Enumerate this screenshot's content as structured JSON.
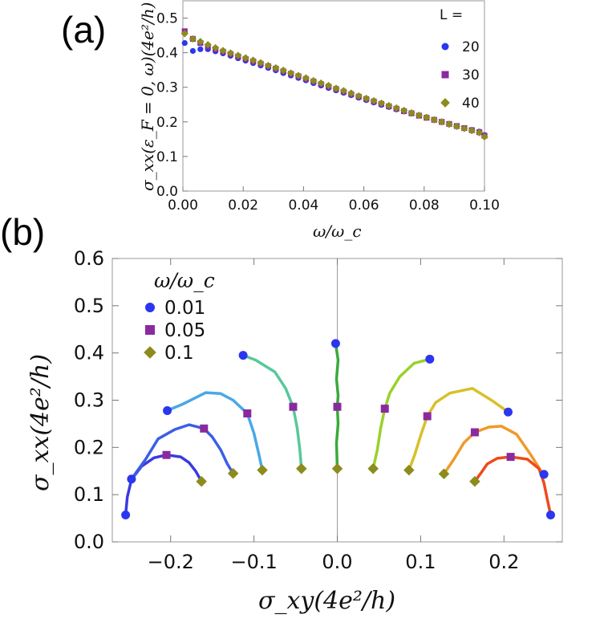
{
  "panel_a": {
    "label": "(a)"
  },
  "panel_b": {
    "label": "(b)"
  },
  "chart_data": [
    {
      "type": "scatter",
      "id": "a",
      "title": "",
      "xlabel": "ω/ω_c",
      "ylabel": "σ_xx(ε_F = 0, ω)(4e²/h)",
      "xlim": [
        0,
        0.1
      ],
      "ylim": [
        0,
        0.55
      ],
      "xticks": [
        "0.00",
        "0.02",
        "0.04",
        "0.06",
        "0.08",
        "0.10"
      ],
      "yticks": [
        "0.0",
        "0.1",
        "0.2",
        "0.3",
        "0.4",
        "0.5"
      ],
      "legend_title": "L =",
      "legend_position": "top-right",
      "x": [
        0.0006,
        0.0033,
        0.0058,
        0.0083,
        0.0108,
        0.0133,
        0.0158,
        0.0183,
        0.0208,
        0.0233,
        0.0258,
        0.0283,
        0.0308,
        0.0333,
        0.0358,
        0.0383,
        0.0408,
        0.0433,
        0.0458,
        0.0483,
        0.0508,
        0.0533,
        0.0558,
        0.0583,
        0.0608,
        0.0633,
        0.0658,
        0.0683,
        0.0708,
        0.0733,
        0.0758,
        0.0783,
        0.0808,
        0.0833,
        0.0858,
        0.0883,
        0.0908,
        0.0933,
        0.0958,
        0.0983,
        0.1
      ],
      "series": [
        {
          "name": "20",
          "color": "#2a36f0",
          "marker": "circle",
          "values": [
            0.428,
            0.405,
            0.41,
            0.41,
            0.404,
            0.398,
            0.391,
            0.384,
            0.377,
            0.37,
            0.363,
            0.356,
            0.349,
            0.341,
            0.334,
            0.327,
            0.32,
            0.312,
            0.305,
            0.298,
            0.291,
            0.284,
            0.277,
            0.27,
            0.263,
            0.256,
            0.249,
            0.243,
            0.236,
            0.23,
            0.224,
            0.218,
            0.212,
            0.206,
            0.2,
            0.194,
            0.188,
            0.182,
            0.177,
            0.172,
            0.162
          ]
        },
        {
          "name": "30",
          "color": "#8a2a9e",
          "marker": "square",
          "values": [
            0.462,
            0.44,
            0.428,
            0.418,
            0.41,
            0.403,
            0.396,
            0.389,
            0.382,
            0.375,
            0.368,
            0.361,
            0.354,
            0.346,
            0.339,
            0.332,
            0.324,
            0.317,
            0.309,
            0.302,
            0.295,
            0.287,
            0.28,
            0.273,
            0.266,
            0.259,
            0.252,
            0.245,
            0.238,
            0.231,
            0.225,
            0.218,
            0.212,
            0.206,
            0.2,
            0.194,
            0.188,
            0.182,
            0.176,
            0.17,
            0.16
          ]
        },
        {
          "name": "40",
          "color": "#8c8c1e",
          "marker": "diamond",
          "values": [
            0.455,
            0.44,
            0.432,
            0.423,
            0.414,
            0.406,
            0.399,
            0.392,
            0.385,
            0.378,
            0.371,
            0.363,
            0.356,
            0.349,
            0.341,
            0.334,
            0.327,
            0.319,
            0.312,
            0.305,
            0.297,
            0.29,
            0.283,
            0.275,
            0.268,
            0.261,
            0.254,
            0.247,
            0.24,
            0.233,
            0.226,
            0.219,
            0.213,
            0.206,
            0.2,
            0.193,
            0.187,
            0.181,
            0.175,
            0.169,
            0.157
          ]
        }
      ]
    },
    {
      "type": "line",
      "id": "b",
      "title": "",
      "xlabel": "σ_xy(4e²/h)",
      "ylabel": "σ_xx(4e²/h)",
      "xlim": [
        -0.27,
        0.27
      ],
      "ylim": [
        0,
        0.6
      ],
      "xticks": [
        "−0.2",
        "−0.1",
        "0.0",
        "0.1",
        "0.2"
      ],
      "yticks": [
        "0.0",
        "0.1",
        "0.2",
        "0.3",
        "0.4",
        "0.5",
        "0.6"
      ],
      "legend_title": "ω/ω_c",
      "legend_position": "top-left",
      "legend": [
        {
          "label": "0.01",
          "marker": "circle",
          "color": "#2a36f0"
        },
        {
          "label": "0.05",
          "marker": "square",
          "color": "#8a2a9e"
        },
        {
          "label": "0.1",
          "marker": "diamond",
          "color": "#8c8c1e"
        }
      ],
      "curves": [
        {
          "color": "#3a3ae0",
          "points": [
            [
              -0.254,
              0.057
            ],
            [
              -0.252,
              0.095
            ],
            [
              -0.247,
              0.132
            ],
            [
              -0.235,
              0.16
            ],
            [
              -0.22,
              0.178
            ],
            [
              -0.205,
              0.184
            ],
            [
              -0.188,
              0.18
            ],
            [
              -0.178,
              0.168
            ],
            [
              -0.17,
              0.15
            ],
            [
              -0.163,
              0.128
            ]
          ],
          "markers": {
            "circle": [
              [
                -0.254,
                0.057
              ],
              [
                -0.247,
                0.133
              ]
            ],
            "square": [
              [
                -0.205,
                0.184
              ]
            ],
            "diamond": [
              [
                -0.163,
                0.128
              ]
            ]
          }
        },
        {
          "color": "#3c5ee6",
          "points": [
            [
              -0.247,
              0.133
            ],
            [
              -0.23,
              0.175
            ],
            [
              -0.215,
              0.218
            ],
            [
              -0.195,
              0.238
            ],
            [
              -0.178,
              0.248
            ],
            [
              -0.16,
              0.24
            ],
            [
              -0.15,
              0.222
            ],
            [
              -0.14,
              0.195
            ],
            [
              -0.132,
              0.165
            ],
            [
              -0.125,
              0.145
            ]
          ],
          "markers": {
            "square": [
              [
                -0.16,
                0.24
              ]
            ],
            "diamond": [
              [
                -0.125,
                0.145
              ]
            ]
          }
        },
        {
          "color": "#48a8e8",
          "points": [
            [
              -0.204,
              0.278
            ],
            [
              -0.185,
              0.292
            ],
            [
              -0.158,
              0.316
            ],
            [
              -0.14,
              0.314
            ],
            [
              -0.125,
              0.3
            ],
            [
              -0.108,
              0.272
            ],
            [
              -0.1,
              0.23
            ],
            [
              -0.094,
              0.185
            ],
            [
              -0.09,
              0.152
            ]
          ],
          "markers": {
            "circle": [
              [
                -0.204,
                0.278
              ]
            ],
            "square": [
              [
                -0.108,
                0.272
              ]
            ],
            "diamond": [
              [
                -0.09,
                0.152
              ]
            ]
          }
        },
        {
          "color": "#58c89a",
          "points": [
            [
              -0.113,
              0.395
            ],
            [
              -0.098,
              0.385
            ],
            [
              -0.075,
              0.36
            ],
            [
              -0.062,
              0.325
            ],
            [
              -0.053,
              0.286
            ],
            [
              -0.048,
              0.24
            ],
            [
              -0.045,
              0.195
            ],
            [
              -0.043,
              0.155
            ]
          ],
          "markers": {
            "circle": [
              [
                -0.113,
                0.395
              ]
            ],
            "square": [
              [
                -0.053,
                0.286
              ]
            ],
            "diamond": [
              [
                -0.043,
                0.155
              ]
            ]
          }
        },
        {
          "color": "#3aaa3a",
          "points": [
            [
              -0.002,
              0.42
            ],
            [
              0.001,
              0.385
            ],
            [
              -0.001,
              0.345
            ],
            [
              0.001,
              0.31
            ],
            [
              0.0,
              0.286
            ],
            [
              0.001,
              0.25
            ],
            [
              -0.001,
              0.21
            ],
            [
              0.0,
              0.155
            ]
          ],
          "markers": {
            "circle": [
              [
                -0.002,
                0.42
              ]
            ],
            "square": [
              [
                0.0,
                0.286
              ]
            ],
            "diamond": [
              [
                0.0,
                0.155
              ]
            ]
          }
        },
        {
          "color": "#9ad12a",
          "points": [
            [
              0.111,
              0.387
            ],
            [
              0.092,
              0.378
            ],
            [
              0.075,
              0.35
            ],
            [
              0.063,
              0.315
            ],
            [
              0.057,
              0.282
            ],
            [
              0.052,
              0.24
            ],
            [
              0.048,
              0.195
            ],
            [
              0.043,
              0.155
            ]
          ],
          "markers": {
            "circle": [
              [
                0.111,
                0.387
              ]
            ],
            "square": [
              [
                0.057,
                0.282
              ]
            ],
            "diamond": [
              [
                0.043,
                0.155
              ]
            ]
          }
        },
        {
          "color": "#d8c02a",
          "points": [
            [
              0.205,
              0.275
            ],
            [
              0.185,
              0.3
            ],
            [
              0.162,
              0.325
            ],
            [
              0.135,
              0.315
            ],
            [
              0.118,
              0.295
            ],
            [
              0.108,
              0.266
            ],
            [
              0.1,
              0.225
            ],
            [
              0.093,
              0.185
            ],
            [
              0.086,
              0.152
            ]
          ],
          "markers": {
            "circle": [
              [
                0.205,
                0.275
              ]
            ],
            "square": [
              [
                0.108,
                0.266
              ]
            ],
            "diamond": [
              [
                0.086,
                0.152
              ]
            ]
          }
        },
        {
          "color": "#ee9a2a",
          "points": [
            [
              0.247,
              0.143
            ],
            [
              0.232,
              0.185
            ],
            [
              0.215,
              0.228
            ],
            [
              0.197,
              0.245
            ],
            [
              0.182,
              0.243
            ],
            [
              0.165,
              0.232
            ],
            [
              0.152,
              0.21
            ],
            [
              0.14,
              0.175
            ],
            [
              0.128,
              0.144
            ]
          ],
          "markers": {
            "square": [
              [
                0.165,
                0.232
              ]
            ],
            "diamond": [
              [
                0.128,
                0.144
              ]
            ]
          }
        },
        {
          "color": "#ee4a1a",
          "points": [
            [
              0.256,
              0.057
            ],
            [
              0.252,
              0.09
            ],
            [
              0.248,
              0.125
            ],
            [
              0.242,
              0.155
            ],
            [
              0.228,
              0.175
            ],
            [
              0.208,
              0.18
            ],
            [
              0.192,
              0.177
            ],
            [
              0.18,
              0.165
            ],
            [
              0.172,
              0.145
            ],
            [
              0.165,
              0.128
            ]
          ],
          "markers": {
            "circle": [
              [
                0.256,
                0.057
              ],
              [
                0.248,
                0.143
              ]
            ],
            "square": [
              [
                0.208,
                0.18
              ]
            ],
            "diamond": [
              [
                0.165,
                0.128
              ]
            ]
          }
        }
      ]
    }
  ]
}
